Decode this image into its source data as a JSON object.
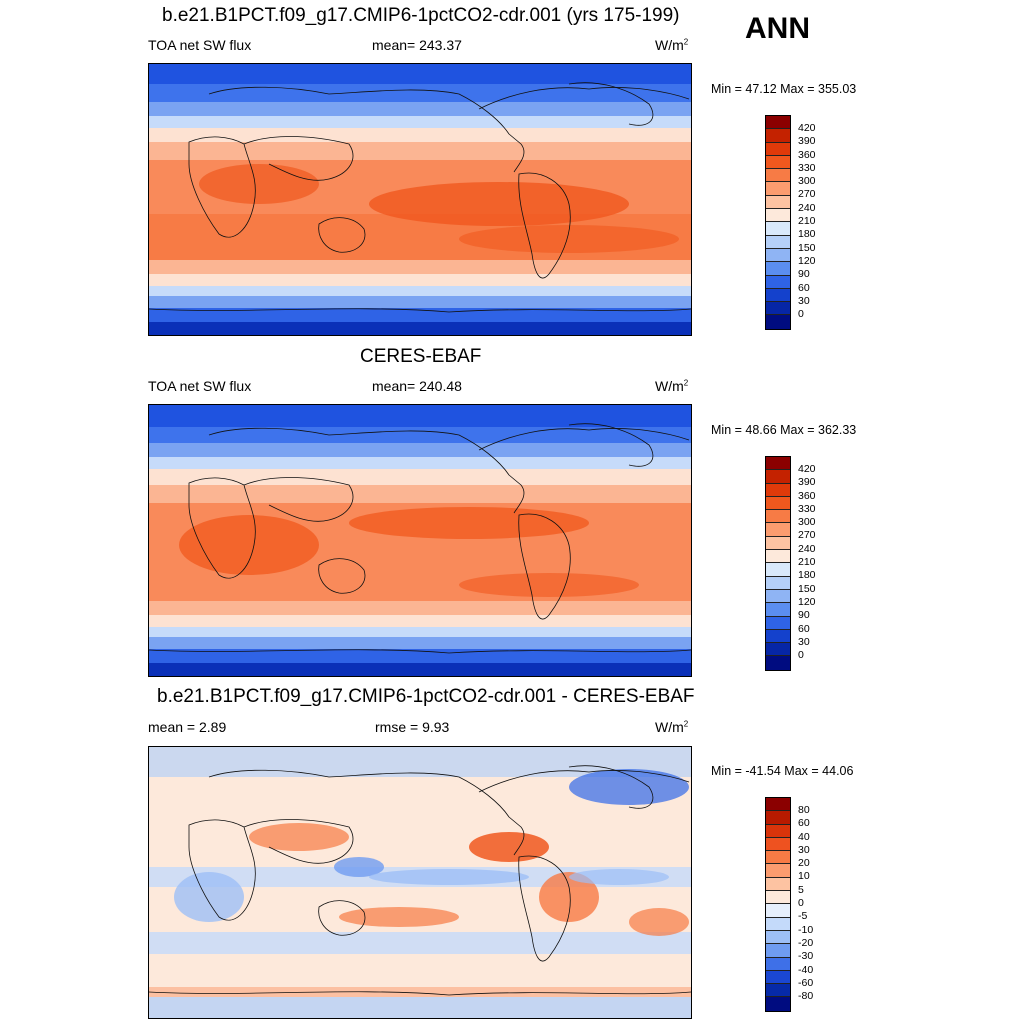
{
  "season": "ANN",
  "panels": [
    {
      "title": "b.e21.B1PCT.f09_g17.CMIP6-1pctCO2-cdr.001 (yrs 175-199)",
      "left_label": "TOA net SW flux",
      "center_label": "mean= 243.37",
      "units": "W/m",
      "units_exp": "2",
      "minmax": "Min =  47.12 Max = 355.03"
    },
    {
      "title": "CERES-EBAF",
      "left_label": "TOA net SW flux",
      "center_label": "mean= 240.48",
      "units": "W/m",
      "units_exp": "2",
      "minmax": "Min =  48.66 Max = 362.33"
    },
    {
      "title": "b.e21.B1PCT.f09_g17.CMIP6-1pctCO2-cdr.001 - CERES-EBAF",
      "left_label": "mean =   2.89",
      "center_label": "rmse =   9.93",
      "units": "W/m",
      "units_exp": "2",
      "minmax": "Min = -41.54 Max =  44.06"
    }
  ],
  "colorbar_abs": {
    "labels": [
      "420",
      "390",
      "360",
      "330",
      "300",
      "270",
      "240",
      "210",
      "180",
      "150",
      "120",
      "90",
      "60",
      "30",
      "0"
    ],
    "colors": [
      "#8b0000",
      "#c42200",
      "#e03a0a",
      "#f0581e",
      "#f77b45",
      "#fb9c6f",
      "#fdc3a2",
      "#fde9db",
      "#d9e9fb",
      "#b5d0f8",
      "#8fb4f4",
      "#5b8ef0",
      "#2f63e6",
      "#1441cc",
      "#0626a6",
      "#000c80"
    ]
  },
  "colorbar_diff": {
    "labels": [
      "80",
      "60",
      "40",
      "30",
      "20",
      "10",
      "5",
      "0",
      "-5",
      "-10",
      "-20",
      "-30",
      "-40",
      "-60",
      "-80"
    ],
    "colors": [
      "#8b0000",
      "#b81a00",
      "#d9340b",
      "#ee5220",
      "#f77b45",
      "#fb9c6f",
      "#fdc3a2",
      "#fde9db",
      "#e6effc",
      "#c4dafa",
      "#9dbff6",
      "#6f9cf1",
      "#3e70e8",
      "#1a47d2",
      "#062aa8",
      "#000c80"
    ]
  }
}
